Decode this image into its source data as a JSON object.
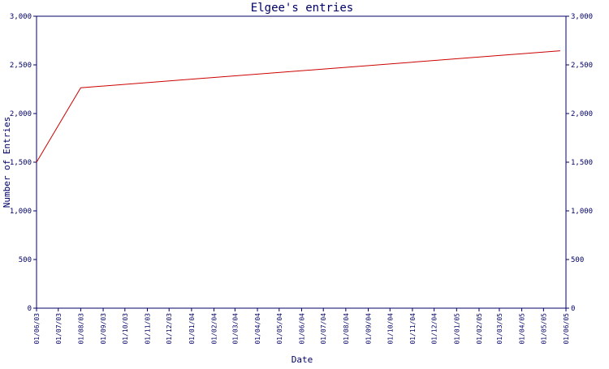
{
  "chart_data": {
    "type": "line",
    "title": "Elgee's entries",
    "xlabel": "Date",
    "ylabel": "Number of Entries",
    "ylim": [
      0,
      3000
    ],
    "yticks": [
      0,
      500,
      1000,
      1500,
      2000,
      2500,
      3000
    ],
    "ytick_labels": [
      "0",
      "500",
      "1,000",
      "1,500",
      "2,000",
      "2,500",
      "3,000"
    ],
    "xtick_labels": [
      "01/06/03",
      "01/07/03",
      "01/08/03",
      "01/09/03",
      "01/10/03",
      "01/11/03",
      "01/12/03",
      "01/01/04",
      "01/02/04",
      "01/03/04",
      "01/04/04",
      "01/05/04",
      "01/06/04",
      "01/07/04",
      "01/08/04",
      "01/09/04",
      "01/10/04",
      "01/11/04",
      "01/12/04",
      "01/01/05",
      "01/02/05",
      "01/03/05",
      "01/04/05",
      "01/05/05",
      "01/06/05"
    ],
    "grid": false,
    "right_axis": true,
    "line_color": "#cc0000",
    "axis_color": "#000066",
    "series": [
      {
        "x": [
          "2003-06-01",
          "2003-08-01",
          "2005-05-24"
        ],
        "values": [
          1500,
          2265,
          2645
        ]
      }
    ]
  }
}
